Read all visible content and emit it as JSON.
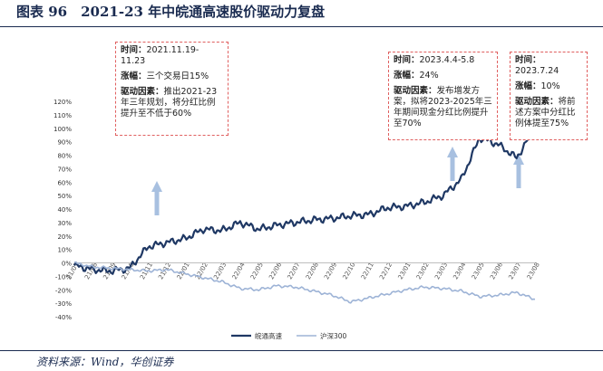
{
  "figure_title": "图表 96　2021-23 年中皖通高速股价驱动力复盘",
  "source_note": "资料来源：Wind，华创证券",
  "annotations": [
    {
      "time_label": "时间：",
      "time": "2021.11.19-11.23",
      "change_label": "涨幅：",
      "change": "三个交易日15%",
      "driver_label": "驱动因素：",
      "driver": "推出2021-23年三年规划，将分红比例提升至不低于60%"
    },
    {
      "time_label": "时间：",
      "time": "2023.4.4-5.8",
      "change_label": "涨幅：",
      "change": "24%",
      "driver_label": "驱动因素：",
      "driver": "发布增发方案，拟将2023-2025年三年期间现金分红比例提升至70%"
    },
    {
      "time_label": "时间：",
      "time": "2023.7.24",
      "change_label": "涨幅：",
      "change": "10%",
      "driver_label": "驱动因素：",
      "driver": "将前述方案中分红比例体提至75%"
    }
  ],
  "colors": {
    "series_1": "#1f3864",
    "series_2": "#9db3d6",
    "arrow": "#a8c0e0",
    "annotation_border": "#e06060",
    "title": "#1a2b50"
  },
  "chart_data": {
    "type": "line",
    "y_tick_labels": [
      "120%",
      "110%",
      "100%",
      "90%",
      "80%",
      "70%",
      "60%",
      "50%",
      "40%",
      "30%",
      "20%",
      "10%",
      "0%",
      "-10%",
      "-20%",
      "-30%",
      "-40%"
    ],
    "ylim": [
      -40,
      120
    ],
    "x_tick_labels": [
      "21/07",
      "21/08",
      "21/09",
      "21/10",
      "21/11",
      "21/12",
      "22/01",
      "22/02",
      "22/03",
      "22/04",
      "22/05",
      "22/06",
      "22/07",
      "22/08",
      "22/09",
      "22/10",
      "22/11",
      "22/12",
      "23/01",
      "23/02",
      "23/03",
      "23/04",
      "23/05",
      "23/06",
      "23/07",
      "23/08"
    ],
    "series": [
      {
        "name": "皖通高速",
        "x": [
          "21/07",
          "21/08",
          "21/09",
          "21/10",
          "21/11",
          "21/12",
          "22/01",
          "22/02",
          "22/03",
          "22/04",
          "22/05",
          "22/06",
          "22/07",
          "22/08",
          "22/09",
          "22/10",
          "22/11",
          "22/12",
          "23/01",
          "23/02",
          "23/03",
          "23/04",
          "23/05",
          "23/06",
          "23/07",
          "23/08"
        ],
        "values": [
          -2,
          -5,
          -6,
          -4,
          12,
          15,
          18,
          25,
          24,
          30,
          25,
          28,
          30,
          32,
          33,
          35,
          36,
          41,
          42,
          45,
          50,
          62,
          93,
          88,
          78,
          100
        ]
      },
      {
        "name": "沪深300",
        "x": [
          "21/07",
          "21/08",
          "21/09",
          "21/10",
          "21/11",
          "21/12",
          "22/01",
          "22/02",
          "22/03",
          "22/04",
          "22/05",
          "22/06",
          "22/07",
          "22/08",
          "22/09",
          "22/10",
          "22/11",
          "22/12",
          "23/01",
          "23/02",
          "23/03",
          "23/04",
          "23/05",
          "23/06",
          "23/07",
          "23/08"
        ],
        "values": [
          0,
          -3,
          -4,
          -5,
          -6,
          -5,
          -8,
          -11,
          -14,
          -19,
          -20,
          -17,
          -18,
          -21,
          -24,
          -29,
          -26,
          -23,
          -20,
          -18,
          -19,
          -21,
          -25,
          -24,
          -22,
          -27
        ]
      }
    ],
    "legend_position": "bottom-center",
    "grid": false
  }
}
